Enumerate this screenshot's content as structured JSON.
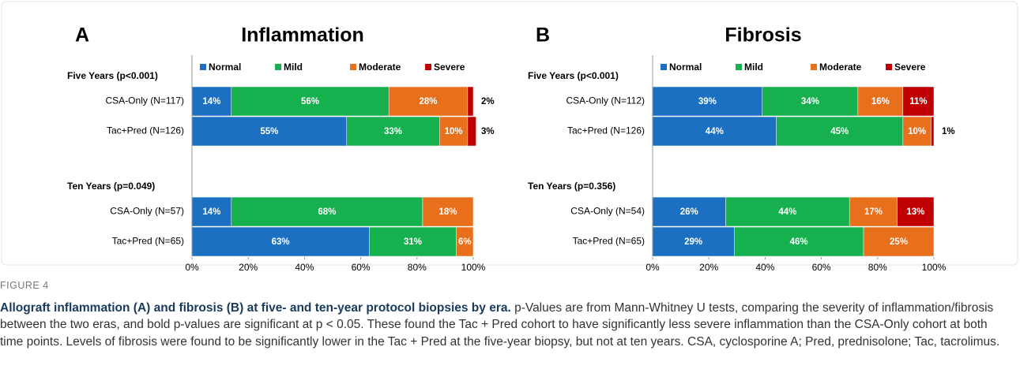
{
  "chart_data": [
    {
      "type": "stacked-bar-horizontal",
      "panel": "A",
      "title": "Inflammation",
      "groups": [
        "Five Years (p<0.001)",
        "Ten Years (p=0.049)"
      ],
      "categories": [
        "CSA-Only (N=117)",
        "Tac+Pred (N=126)",
        "CSA-Only (N=57)",
        "Tac+Pred (N=65)"
      ],
      "series": [
        {
          "name": "Normal",
          "color": "#1b70c2",
          "values": [
            14,
            55,
            14,
            63
          ],
          "value_labels": [
            "14%",
            "55%",
            "14%",
            "63%"
          ]
        },
        {
          "name": "Mild",
          "color": "#17b04e",
          "values": [
            56,
            33,
            68,
            31
          ],
          "value_labels": [
            "56%",
            "33%",
            "68%",
            "31%"
          ]
        },
        {
          "name": "Moderate",
          "color": "#e8701c",
          "values": [
            28,
            10,
            18,
            6
          ],
          "value_labels": [
            "28%",
            "10%",
            "18%",
            "6%"
          ]
        },
        {
          "name": "Severe",
          "color": "#c00000",
          "values": [
            2,
            3,
            0,
            0
          ],
          "value_labels": [
            "2%",
            "3%",
            null,
            null
          ]
        }
      ],
      "xlim": [
        0,
        100
      ],
      "xticks": [
        {
          "value": 0,
          "label": "0%"
        },
        {
          "value": 20,
          "label": "20%"
        },
        {
          "value": 40,
          "label": "40%"
        },
        {
          "value": 60,
          "label": "60%"
        },
        {
          "value": 80,
          "label": "80%"
        },
        {
          "value": 100,
          "label": "100%"
        }
      ]
    },
    {
      "type": "stacked-bar-horizontal",
      "panel": "B",
      "title": "Fibrosis",
      "groups": [
        "Five Years (p<0.001)",
        "Ten Years (p=0.356)"
      ],
      "categories": [
        "CSA-Only (N=112)",
        "Tac+Pred (N=126)",
        "CSA-Only (N=54)",
        "Tac+Pred (N=65)"
      ],
      "series": [
        {
          "name": "Normal",
          "color": "#1b70c2",
          "values": [
            39,
            44,
            26,
            29
          ],
          "value_labels": [
            "39%",
            "44%",
            "26%",
            "29%"
          ]
        },
        {
          "name": "Mild",
          "color": "#17b04e",
          "values": [
            34,
            45,
            44,
            46
          ],
          "value_labels": [
            "34%",
            "45%",
            "44%",
            "46%"
          ]
        },
        {
          "name": "Moderate",
          "color": "#e8701c",
          "values": [
            16,
            10,
            17,
            25
          ],
          "value_labels": [
            "16%",
            "10%",
            "17%",
            "25%"
          ]
        },
        {
          "name": "Severe",
          "color": "#c00000",
          "values": [
            11,
            1,
            13,
            0
          ],
          "value_labels": [
            "11%",
            "1%",
            "13%",
            null
          ]
        }
      ],
      "xlim": [
        0,
        100
      ],
      "xticks": [
        {
          "value": 0,
          "label": "0%"
        },
        {
          "value": 20,
          "label": "20%"
        },
        {
          "value": 40,
          "label": "40%"
        },
        {
          "value": 60,
          "label": "60%"
        },
        {
          "value": 80,
          "label": "80%"
        },
        {
          "value": 100,
          "label": "100%"
        }
      ]
    }
  ],
  "figure_caption": {
    "label": "FIGURE 4",
    "title": "Allograft inflammation (A) and fibrosis (B) at five- and ten-year protocol biopsies by era.",
    "text": "p-Values are from Mann-Whitney U tests, comparing the severity of inflammation/fibrosis between the two eras, and bold p-values are significant at p < 0.05. These found the Tac + Pred cohort to have significantly less severe inflammation than the CSA-Only cohort at both time points. Levels of fibrosis were found to be significantly lower in the Tac + Pred at the five-year biopsy, but not at ten years. CSA, cyclosporine A; Pred, prednisolone; Tac, tacrolimus."
  }
}
